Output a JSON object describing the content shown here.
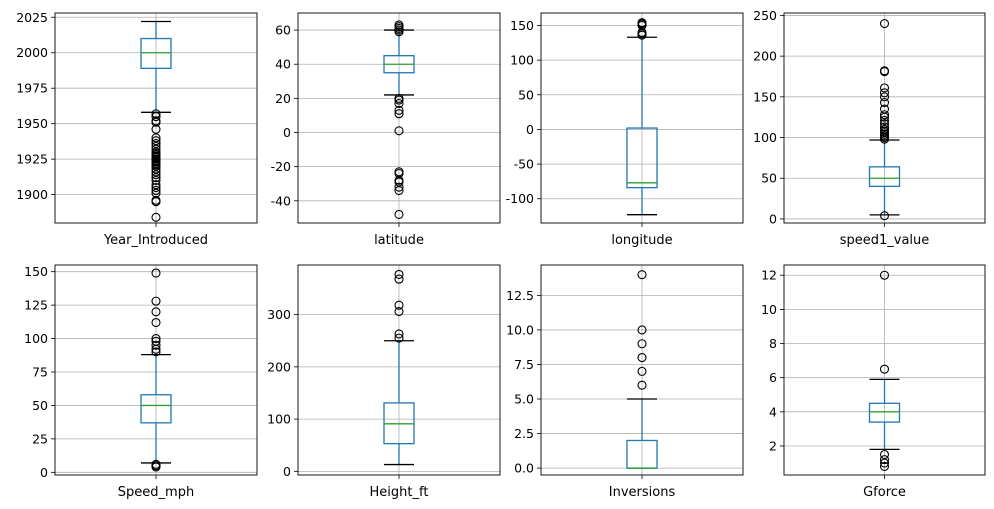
{
  "chart_data": [
    {
      "type": "box",
      "category": "Year_Introduced",
      "ylim": [
        1880,
        2028
      ],
      "yticks": [
        1900,
        1925,
        1950,
        1975,
        2000,
        2025
      ],
      "grid": true,
      "whisker_low": 1958,
      "q1": 1989,
      "median": 2000,
      "q3": 2010,
      "whisker_high": 2022,
      "outliers": [
        1884,
        1895,
        1896,
        1901,
        1903,
        1905,
        1907,
        1910,
        1912,
        1914,
        1916,
        1918,
        1920,
        1921,
        1922,
        1923,
        1924,
        1925,
        1926,
        1927,
        1928,
        1929,
        1930,
        1932,
        1934,
        1936,
        1938,
        1940,
        1946,
        1951,
        1952,
        1955,
        1957
      ]
    },
    {
      "type": "box",
      "category": "latitude",
      "ylim": [
        -53,
        70
      ],
      "yticks": [
        -40,
        -20,
        0,
        20,
        40,
        60
      ],
      "grid": true,
      "whisker_low": 22,
      "q1": 35,
      "median": 40,
      "q3": 45,
      "whisker_high": 60,
      "outliers": [
        -48,
        -34,
        -32,
        -29,
        -28,
        -24,
        -23,
        1,
        11,
        13,
        17,
        19,
        20,
        59,
        60,
        61,
        62,
        63
      ]
    },
    {
      "type": "box",
      "category": "longitude",
      "ylim": [
        -135,
        168
      ],
      "yticks": [
        -100,
        -50,
        0,
        50,
        100,
        150
      ],
      "grid": true,
      "whisker_low": -123,
      "q1": -84,
      "median": -77,
      "q3": 2,
      "whisker_high": 133,
      "outliers": [
        136,
        138,
        140,
        150,
        152,
        153,
        154
      ]
    },
    {
      "type": "box",
      "category": "speed1_value",
      "ylim": [
        -5,
        253
      ],
      "yticks": [
        0,
        50,
        100,
        150,
        200,
        250
      ],
      "grid": true,
      "whisker_low": 5,
      "q1": 40,
      "median": 50,
      "q3": 64,
      "whisker_high": 97,
      "outliers": [
        4,
        98,
        100,
        102,
        104,
        106,
        108,
        110,
        113,
        117,
        121,
        125,
        128,
        135,
        143,
        150,
        155,
        161,
        181,
        182,
        240
      ]
    },
    {
      "type": "box",
      "category": "Speed_mph",
      "ylim": [
        -2,
        155
      ],
      "yticks": [
        0,
        25,
        50,
        75,
        100,
        125,
        150
      ],
      "grid": true,
      "whisker_low": 7,
      "q1": 37,
      "median": 50,
      "q3": 58,
      "whisker_high": 88,
      "outliers": [
        4,
        5,
        6,
        90,
        92,
        95,
        98,
        100,
        112,
        120,
        128,
        149
      ]
    },
    {
      "type": "box",
      "category": "Height_ft",
      "ylim": [
        -7,
        395
      ],
      "yticks": [
        0,
        100,
        200,
        300
      ],
      "grid": true,
      "whisker_low": 13,
      "q1": 53,
      "median": 91,
      "q3": 131,
      "whisker_high": 250,
      "outliers": [
        255,
        263,
        306,
        318,
        368,
        377
      ]
    },
    {
      "type": "box",
      "category": "Inversions",
      "ylim": [
        -0.5,
        14.7
      ],
      "yticks": [
        0.0,
        2.5,
        5.0,
        7.5,
        10.0,
        12.5
      ],
      "ytick_labels": [
        "0.0",
        "2.5",
        "5.0",
        "7.5",
        "10.0",
        "12.5"
      ],
      "grid": true,
      "whisker_low": 0,
      "q1": 0,
      "median": 0,
      "q3": 2,
      "whisker_high": 5,
      "outliers": [
        6,
        7,
        8,
        9,
        10,
        14
      ]
    },
    {
      "type": "box",
      "category": "Gforce",
      "ylim": [
        0.3,
        12.6
      ],
      "yticks": [
        2,
        4,
        6,
        8,
        10,
        12
      ],
      "grid": true,
      "whisker_low": 1.8,
      "q1": 3.4,
      "median": 4.0,
      "q3": 4.5,
      "whisker_high": 5.9,
      "outliers": [
        0.8,
        1.0,
        1.2,
        1.5,
        6.5,
        12.0
      ]
    }
  ],
  "colors": {
    "box": "#1f77b4",
    "median": "#2ca02c",
    "grid": "#b0b0b0",
    "outlier_edge": "#000000",
    "axes": "#000000"
  }
}
